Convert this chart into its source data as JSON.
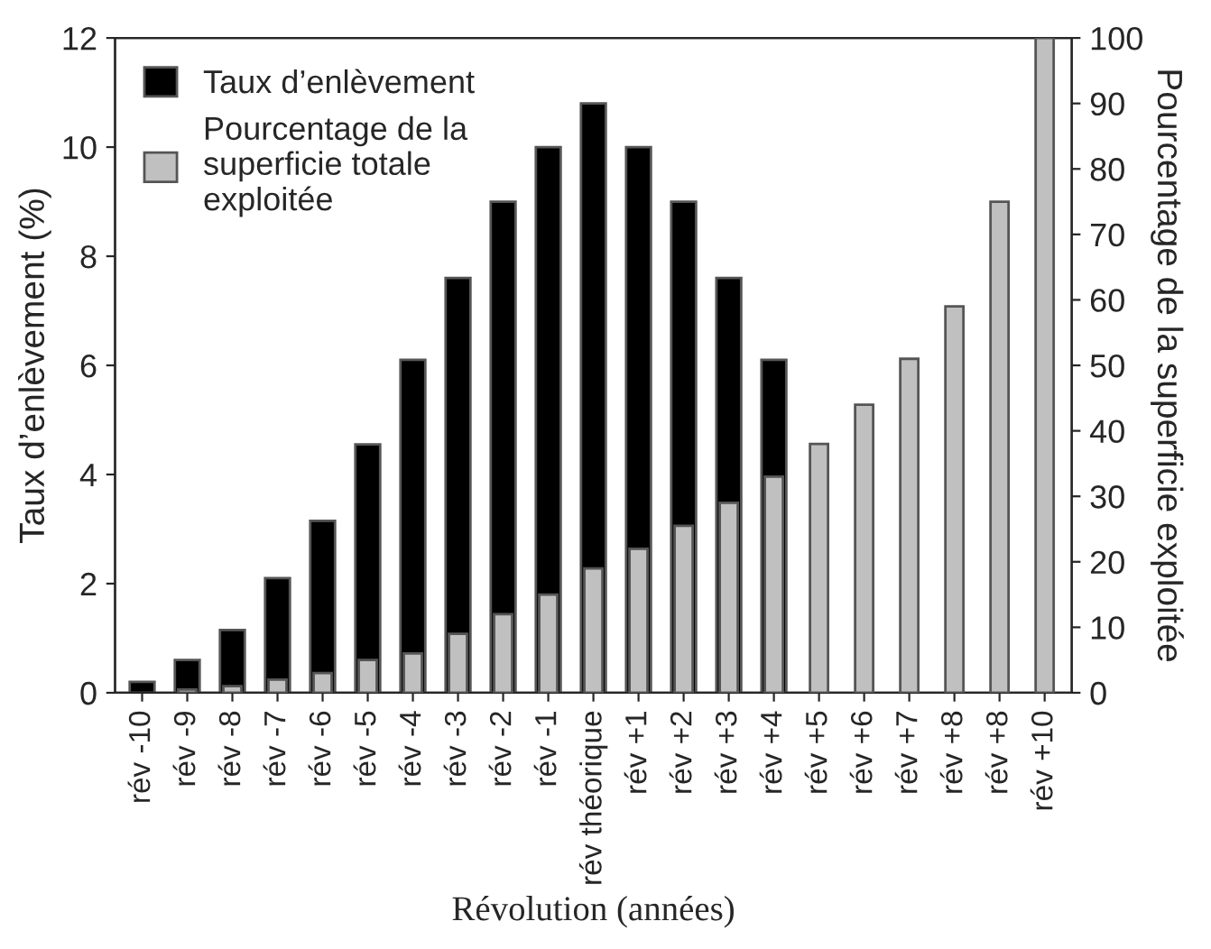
{
  "chart_data": {
    "type": "bar",
    "categories": [
      "rév -10",
      "rév -9",
      "rév -8",
      "rév -7",
      "rév -6",
      "rév -5",
      "rév -4",
      "rév -3",
      "rév -2",
      "rév -1",
      "rév théorique",
      "rév +1",
      "rév +2",
      "rév +3",
      "rév +4",
      "rév +5",
      "rév +6",
      "rév +7",
      "rév +8",
      "rév +8",
      "rév +10"
    ],
    "series": [
      {
        "name": "Taux d’enlèvement",
        "color": "#000000",
        "values": [
          0.2,
          0.6,
          1.15,
          2.1,
          3.15,
          4.55,
          6.1,
          7.6,
          9.0,
          10.0,
          10.8,
          10.0,
          9.0,
          7.6,
          6.1,
          null,
          null,
          null,
          null,
          null,
          null
        ]
      },
      {
        "name": "Pourcentage de la superficie totale exploitée",
        "color": "#c0c0c0",
        "axis": "y2",
        "values": [
          null,
          0.5,
          1,
          2,
          3,
          5,
          6,
          9,
          12,
          15,
          19,
          22,
          25.5,
          29,
          33,
          38,
          44,
          51,
          59,
          75,
          100
        ]
      }
    ],
    "xlabel": "Révolution (années)",
    "ylabel": "Taux d’enlèvement (%)",
    "y2label": "Pourcentage de la superficie exploitée",
    "ylim": [
      0,
      12
    ],
    "yticks": [
      0,
      2,
      4,
      6,
      8,
      10,
      12
    ],
    "y2lim": [
      0,
      100
    ],
    "y2ticks": [
      0,
      10,
      20,
      30,
      40,
      50,
      60,
      70,
      80,
      90,
      100
    ],
    "legend": "top left",
    "grid": false
  }
}
